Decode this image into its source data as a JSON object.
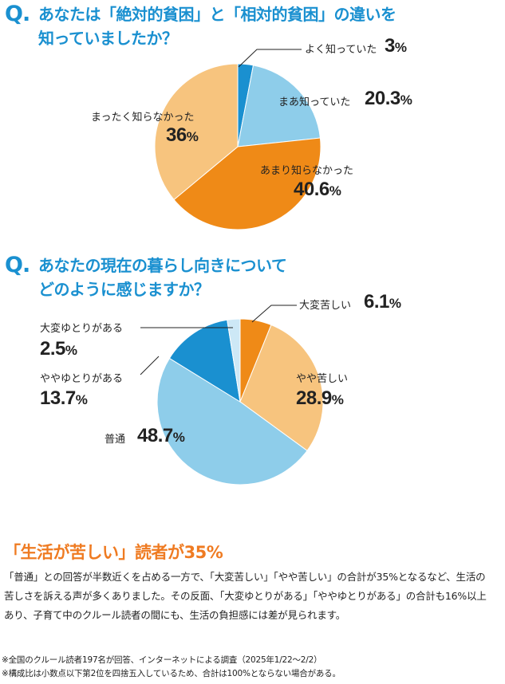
{
  "q1": {
    "mark": "Q.",
    "line1": "あなたは「絶対的貧困」と「相対的貧困」の違いを",
    "line2": "知っていましたか？"
  },
  "q2": {
    "mark": "Q.",
    "line1": "あなたの現在の暮らし向きについて",
    "line2": "どのように感じますか？"
  },
  "chart_data": [
    {
      "type": "pie",
      "title": "",
      "categories": [
        "よく知っていた",
        "まあ知っていた",
        "あまり知らなかった",
        "まったく知らなかった"
      ],
      "values": [
        3,
        20.3,
        40.6,
        36
      ],
      "value_labels": [
        "3",
        "20.3",
        "40.6",
        "36"
      ],
      "unit": "%",
      "colors": [
        "#1a90d0",
        "#8ecdea",
        "#ef8a17",
        "#f7c47e"
      ]
    },
    {
      "type": "pie",
      "title": "",
      "categories": [
        "大変苦しい",
        "やや苦しい",
        "普通",
        "ややゆとりがある",
        "大変ゆとりがある"
      ],
      "values": [
        6.1,
        28.9,
        48.7,
        13.7,
        2.5
      ],
      "value_labels": [
        "6.1",
        "28.9",
        "48.7",
        "13.7",
        "2.5"
      ],
      "unit": "%",
      "colors": [
        "#ef8a17",
        "#f7c47e",
        "#8ecdea",
        "#1a90d0",
        "#cde8f6"
      ]
    }
  ],
  "summary": {
    "headline": "「生活が苦しい」読者が35%",
    "body": "「普通」との回答が半数近くを占める一方で、「大変苦しい」「やや苦しい」の合計が35%となるなど、生活の苦しさを訴える声が多くありました。その反面、「大変ゆとりがある」「ややゆとりがある」の合計も16%以上あり、子育て中のクルール読者の間にも、生活の負担感には差が見られます。",
    "note1": "※全国のクルール読者197名が回答、インターネットによる調査（2025年1/22〜2/2）",
    "note2": "※構成比は小数点以下第2位を四捨五入しているため、合計は100%とならない場合がある。"
  }
}
